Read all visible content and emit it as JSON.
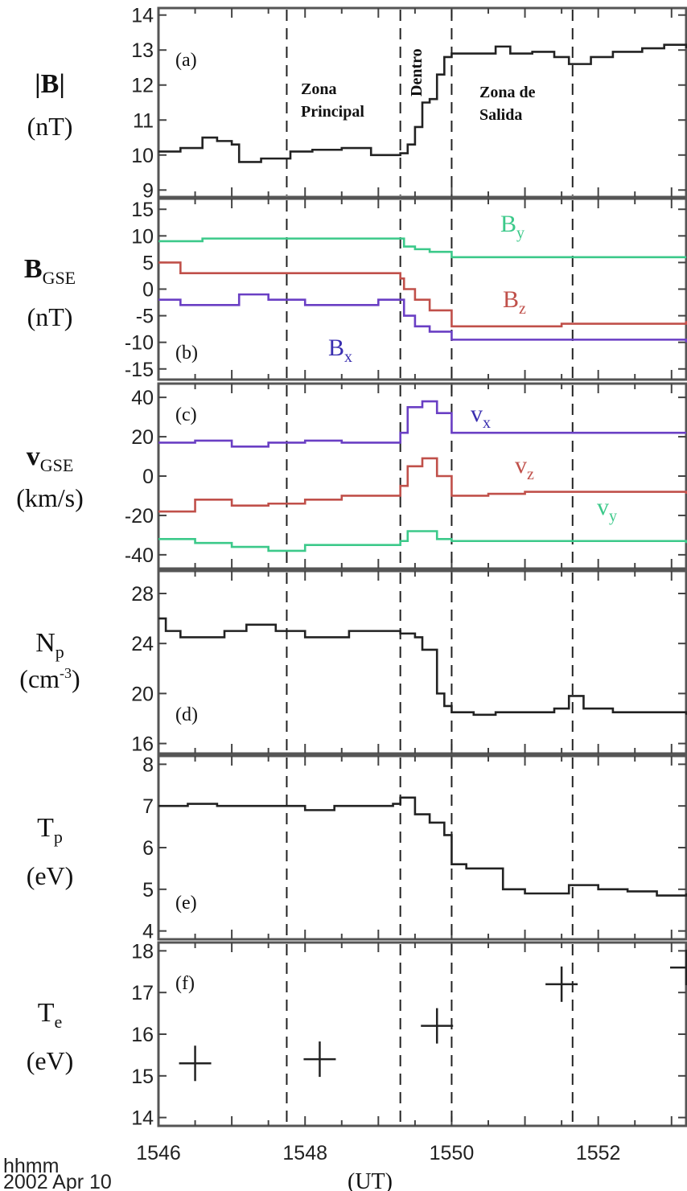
{
  "figure": {
    "footer_time_label": "hhmm",
    "footer_date": "2002 Apr 10",
    "footer_unit": "(UT)"
  },
  "zones": {
    "principal_line1": "Zona",
    "principal_line2": "Principal",
    "dentro": "Dentro",
    "salida_line1": "Zona de",
    "salida_line2": "Salida"
  },
  "colors": {
    "black": "#222222",
    "green": "#3cc98a",
    "red": "#c0504a",
    "purple": "#6a3fc4",
    "blue_label": "#3a2fb0"
  },
  "chart_data": [
    {
      "id": "a",
      "type": "line",
      "panel_label": "(a)",
      "ylabel": "|B|",
      "yunit": "(nT)",
      "x": [
        1546.0,
        1546.3,
        1546.6,
        1546.8,
        1547.0,
        1547.1,
        1547.4,
        1547.8,
        1548.1,
        1548.5,
        1548.9,
        1549.3,
        1549.4,
        1549.5,
        1549.6,
        1549.7,
        1549.8,
        1549.9,
        1550.0,
        1550.3,
        1550.6,
        1550.8,
        1551.1,
        1551.4,
        1551.6,
        1551.9,
        1552.2,
        1552.6,
        1552.9,
        1553.2
      ],
      "y_ticks": [
        9,
        10,
        11,
        12,
        13,
        14
      ],
      "ylim": [
        8.8,
        14.2
      ],
      "series": [
        {
          "color": "#222222",
          "values": [
            10.1,
            10.2,
            10.5,
            10.4,
            10.3,
            9.8,
            9.9,
            10.1,
            10.15,
            10.2,
            10.0,
            10.05,
            10.3,
            10.8,
            11.5,
            11.6,
            12.3,
            12.8,
            12.9,
            12.9,
            13.1,
            12.9,
            12.95,
            12.8,
            12.6,
            12.8,
            12.95,
            13.05,
            13.15,
            13.05
          ]
        }
      ]
    },
    {
      "id": "b",
      "type": "line",
      "panel_label": "(b)",
      "ylabel": "B",
      "ylabel_sub": "GSE",
      "yunit": "(nT)",
      "x": [
        1546.0,
        1546.3,
        1546.6,
        1547.0,
        1547.1,
        1547.5,
        1548.0,
        1548.5,
        1549.0,
        1549.3,
        1549.35,
        1549.5,
        1549.7,
        1550.0,
        1550.5,
        1551.0,
        1551.5,
        1552.0,
        1552.5,
        1553.2
      ],
      "y_ticks": [
        -15,
        -10,
        -5,
        0,
        5,
        10,
        15
      ],
      "y_tick_labels": [
        "-15",
        "-10",
        "-5",
        "0",
        "5",
        "10",
        "15"
      ],
      "ylim": [
        -17,
        17
      ],
      "series": [
        {
          "name": "B_y",
          "label": "B",
          "sub": "y",
          "color": "#3cc98a",
          "values": [
            9,
            9,
            9.5,
            9.5,
            9.5,
            9.5,
            9.5,
            9.5,
            9.5,
            9.5,
            8,
            7.5,
            7,
            6,
            6,
            6,
            6,
            6,
            6,
            6
          ]
        },
        {
          "name": "B_z",
          "label": "B",
          "sub": "z",
          "color": "#c0504a",
          "values": [
            5,
            3,
            3,
            3,
            3,
            3,
            3,
            3,
            3,
            2,
            0,
            -2,
            -4,
            -7,
            -7,
            -7,
            -6.5,
            -6.5,
            -6.5,
            -6
          ]
        },
        {
          "name": "B_x",
          "label": "B",
          "sub": "x",
          "color": "#6a3fc4",
          "values": [
            -2,
            -3,
            -3,
            -3,
            -1,
            -2,
            -3,
            -3,
            -2,
            -2,
            -5,
            -7,
            -8,
            -9.5,
            -9.5,
            -9.5,
            -9.5,
            -9.5,
            -9.5,
            -10
          ]
        }
      ]
    },
    {
      "id": "c",
      "type": "line",
      "panel_label": "(c)",
      "ylabel": "v",
      "ylabel_sub": "GSE",
      "yunit": "(km/s)",
      "x": [
        1546.0,
        1546.5,
        1547.0,
        1547.5,
        1548.0,
        1548.5,
        1549.0,
        1549.3,
        1549.4,
        1549.6,
        1549.8,
        1550.0,
        1550.5,
        1551.0,
        1551.5,
        1552.0,
        1552.5,
        1553.2
      ],
      "y_ticks": [
        -40,
        -20,
        0,
        20,
        40
      ],
      "y_tick_labels": [
        "-40",
        "-20",
        "0",
        "20",
        "40"
      ],
      "ylim": [
        -47,
        47
      ],
      "series": [
        {
          "name": "v_x",
          "label": "v",
          "sub": "x",
          "color": "#6a3fc4",
          "values": [
            17,
            18,
            15,
            17,
            18,
            17,
            17,
            22,
            35,
            38,
            32,
            22,
            22,
            22,
            22,
            22,
            22,
            22
          ]
        },
        {
          "name": "v_z",
          "label": "v",
          "sub": "z",
          "color": "#c0504a",
          "values": [
            -18,
            -12,
            -15,
            -14,
            -12,
            -10,
            -10,
            -5,
            5,
            9,
            0,
            -10,
            -9,
            -8,
            -8,
            -8,
            -8,
            -9
          ]
        },
        {
          "name": "v_y",
          "label": "v",
          "sub": "y",
          "color": "#3cc98a",
          "values": [
            -32,
            -34,
            -36,
            -38,
            -35,
            -35,
            -35,
            -33,
            -28,
            -28,
            -32,
            -33,
            -33,
            -33,
            -33,
            -33,
            -33,
            -34
          ]
        }
      ]
    },
    {
      "id": "d",
      "type": "line",
      "panel_label": "(d)",
      "ylabel": "N",
      "ylabel_sub": "p",
      "yunit": "(cm",
      "yunit_sup": "-3",
      "yunit_close": ")",
      "x": [
        1546.0,
        1546.1,
        1546.3,
        1546.6,
        1546.9,
        1547.2,
        1547.6,
        1548.0,
        1548.3,
        1548.6,
        1549.0,
        1549.3,
        1549.5,
        1549.6,
        1549.8,
        1549.9,
        1550.0,
        1550.3,
        1550.6,
        1551.0,
        1551.4,
        1551.6,
        1551.8,
        1552.2,
        1552.6,
        1553.2
      ],
      "y_ticks": [
        16,
        20,
        24,
        28
      ],
      "ylim": [
        15.2,
        29.8
      ],
      "series": [
        {
          "color": "#222222",
          "values": [
            26,
            25,
            24.5,
            24.5,
            25,
            25.5,
            25,
            24.5,
            24.5,
            25,
            25,
            24.8,
            24.5,
            23.5,
            20,
            19,
            18.5,
            18.3,
            18.5,
            18.5,
            18.8,
            19.8,
            18.8,
            18.5,
            18.5,
            18.3
          ]
        }
      ]
    },
    {
      "id": "e",
      "type": "line",
      "panel_label": "(e)",
      "ylabel": "T",
      "ylabel_sub": "p",
      "yunit": "(eV)",
      "x": [
        1546.0,
        1546.4,
        1546.8,
        1547.2,
        1547.6,
        1548.0,
        1548.4,
        1548.8,
        1549.2,
        1549.3,
        1549.5,
        1549.7,
        1549.9,
        1550.0,
        1550.2,
        1550.5,
        1550.7,
        1551.0,
        1551.3,
        1551.6,
        1552.0,
        1552.4,
        1552.8,
        1553.2
      ],
      "y_ticks": [
        4,
        5,
        6,
        7,
        8
      ],
      "ylim": [
        3.8,
        8.2
      ],
      "series": [
        {
          "color": "#222222",
          "values": [
            7,
            7.05,
            7,
            7,
            7,
            6.9,
            7,
            7,
            7.05,
            7.2,
            6.8,
            6.6,
            6.3,
            5.6,
            5.5,
            5.5,
            5,
            4.9,
            4.9,
            5.1,
            5,
            4.95,
            4.85,
            4.9
          ]
        }
      ]
    },
    {
      "id": "f",
      "type": "scatter",
      "panel_label": "(f)",
      "ylabel": "T",
      "ylabel_sub": "e",
      "yunit": "(eV)",
      "x_ticks": [
        1546,
        1548,
        1550,
        1552
      ],
      "x_tick_labels": [
        "1546",
        "1548",
        "1550",
        "1552"
      ],
      "y_ticks": [
        14,
        15,
        16,
        17,
        18
      ],
      "ylim": [
        13.8,
        18.2
      ],
      "series": [
        {
          "color": "#222222",
          "x": [
            1546.5,
            1548.2,
            1549.8,
            1551.5,
            1553.2
          ],
          "values": [
            15.3,
            15.4,
            16.2,
            17.2,
            17.6
          ]
        }
      ]
    }
  ],
  "xlim": [
    1546,
    1553.2
  ],
  "vlines": [
    1547.75,
    1549.3,
    1550.0,
    1551.65
  ]
}
